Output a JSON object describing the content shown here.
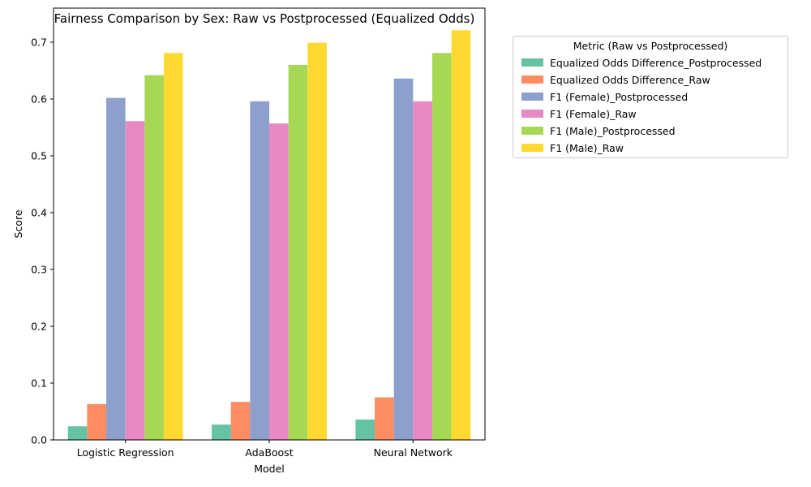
{
  "chart_data": {
    "type": "bar",
    "title": "Fairness Comparison by Sex: Raw vs Postprocessed (Equalized Odds)",
    "xlabel": "Model",
    "ylabel": "Score",
    "ylim": [
      0,
      0.76
    ],
    "yticks": [
      "0.0",
      "0.1",
      "0.2",
      "0.3",
      "0.4",
      "0.5",
      "0.6",
      "0.7"
    ],
    "categories": [
      "Logistic Regression",
      "AdaBoost",
      "Neural Network"
    ],
    "legend_title": "Metric (Raw vs Postprocessed)",
    "legend_position": "outside upper right",
    "grid": false,
    "series": [
      {
        "name": "Equalized Odds Difference_Postprocessed",
        "color": "#66c2a5",
        "values": [
          0.024,
          0.027,
          0.036
        ]
      },
      {
        "name": "Equalized Odds Difference_Raw",
        "color": "#fc8d62",
        "values": [
          0.063,
          0.067,
          0.075
        ]
      },
      {
        "name": "F1 (Female)_Postprocessed",
        "color": "#8da0cb",
        "values": [
          0.602,
          0.596,
          0.636
        ]
      },
      {
        "name": "F1 (Female)_Raw",
        "color": "#e78ac3",
        "values": [
          0.561,
          0.557,
          0.596
        ]
      },
      {
        "name": "F1 (Male)_Postprocessed",
        "color": "#a6d854",
        "values": [
          0.642,
          0.66,
          0.681
        ]
      },
      {
        "name": "F1 (Male)_Raw",
        "color": "#ffd92f",
        "values": [
          0.681,
          0.699,
          0.721
        ]
      }
    ]
  }
}
